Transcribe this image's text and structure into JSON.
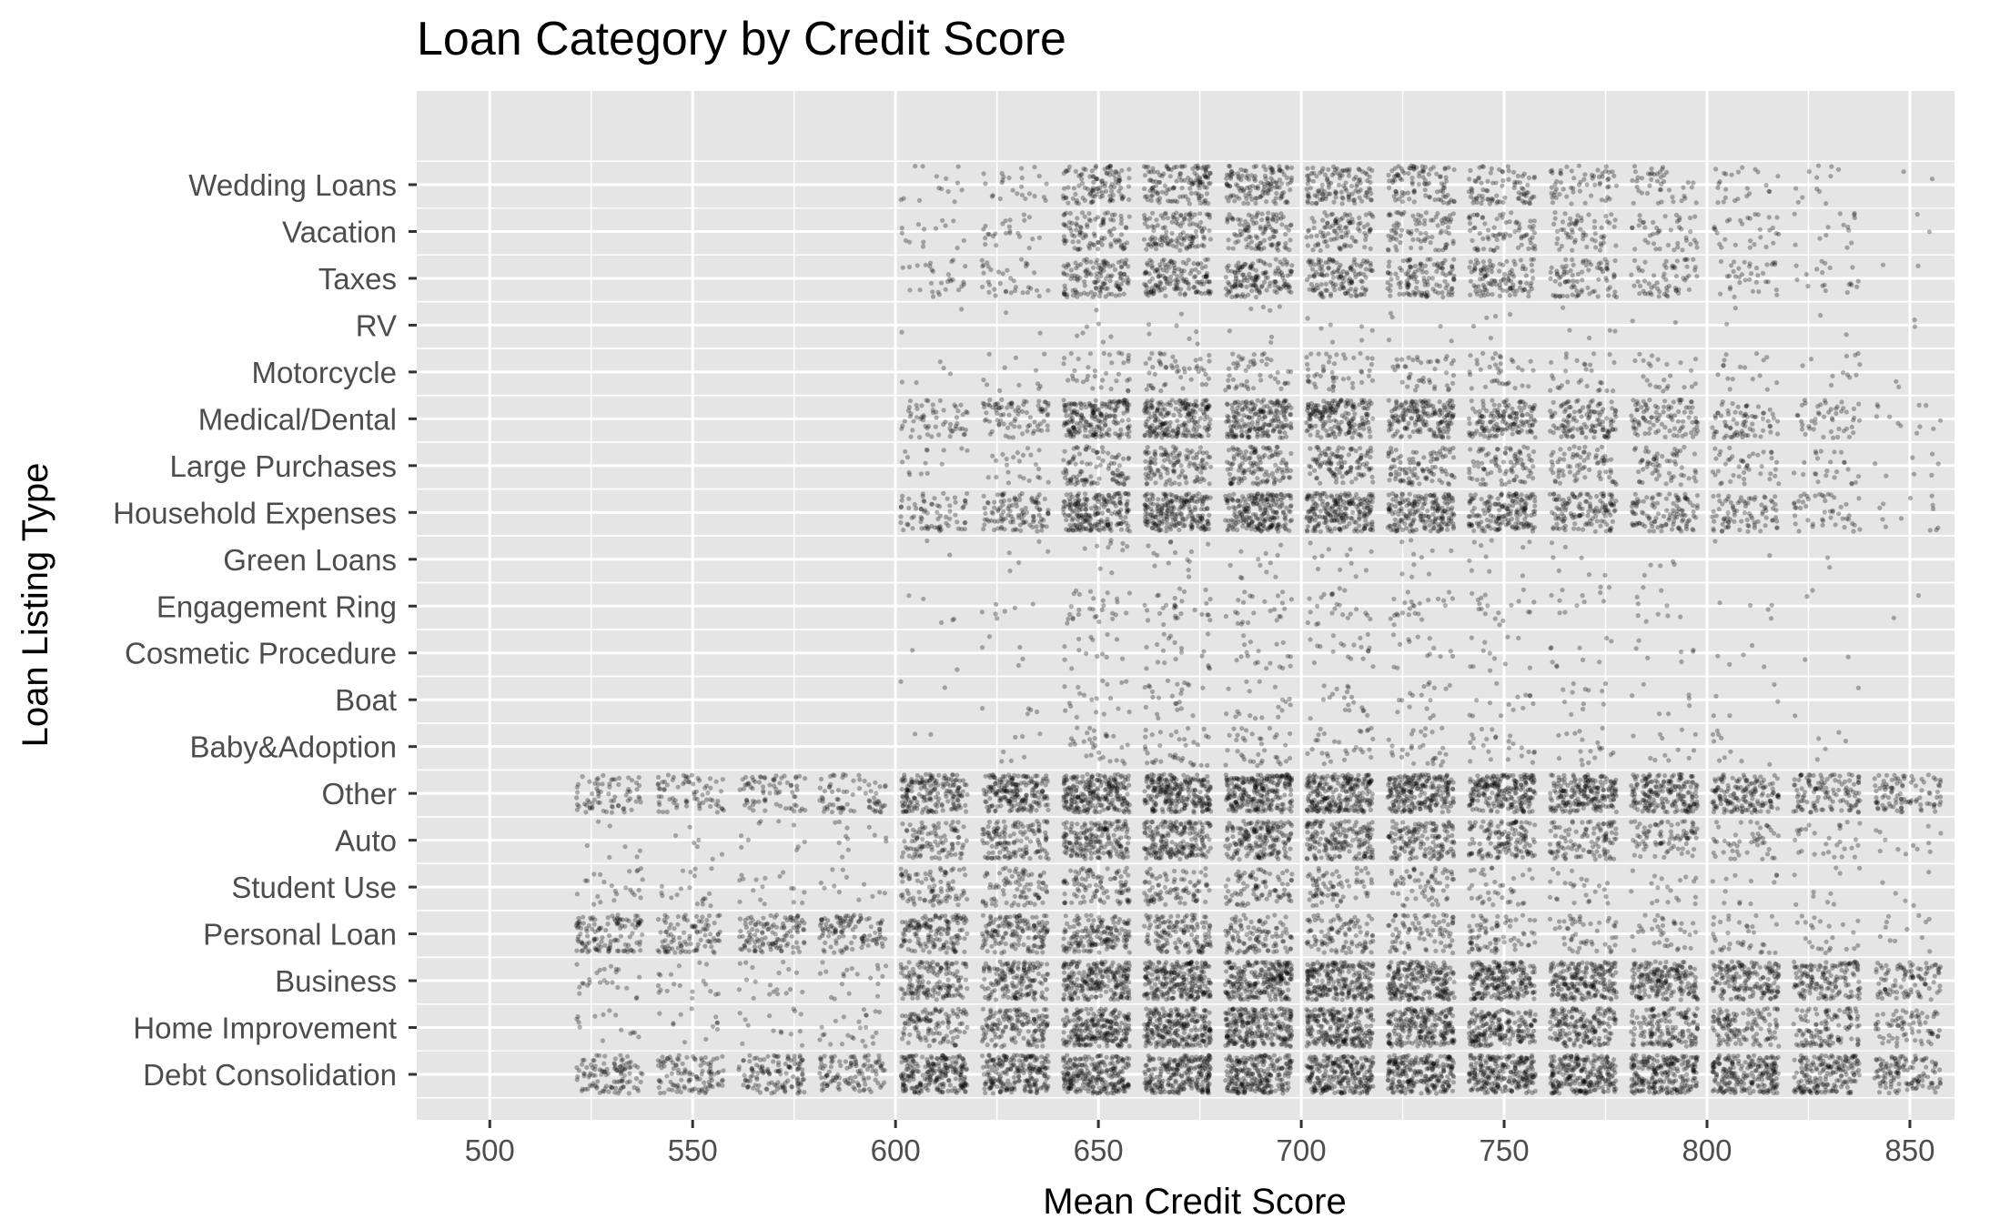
{
  "chart_data": {
    "type": "scatter",
    "title": "Loan Category by Credit Score",
    "xlabel": "Mean Credit Score",
    "ylabel": "Loan Listing Type",
    "xlim": [
      482,
      861
    ],
    "x_ticks": [
      500,
      550,
      600,
      650,
      700,
      750,
      800,
      850
    ],
    "categories": [
      "Debt Consolidation",
      "Home Improvement",
      "Business",
      "Personal Loan",
      "Student Use",
      "Auto",
      "Other",
      "Baby&Adoption",
      "Boat",
      "Cosmetic Procedure",
      "Engagement Ring",
      "Green Loans",
      "Household Expenses",
      "Large Purchases",
      "Medical/Dental",
      "Motorcycle",
      "RV",
      "Taxes",
      "Vacation",
      "Wedding Loans"
    ],
    "x_bins": [
      529.5,
      549.5,
      569.5,
      589.5,
      609.5,
      629.5,
      649.5,
      669.5,
      689.5,
      709.5,
      729.5,
      749.5,
      769.5,
      789.5,
      809.5,
      829.5,
      849.5
    ],
    "jitter_note": "",
    "point_density": [
      [
        0.45,
        0.45,
        0.5,
        0.45,
        0.95,
        0.9,
        1.0,
        1.0,
        1.0,
        1.0,
        1.0,
        1.0,
        1.0,
        0.95,
        0.9,
        0.75,
        0.5
      ],
      [
        0.06,
        0.05,
        0.06,
        0.1,
        0.45,
        0.6,
        0.95,
        1.0,
        1.0,
        0.95,
        0.9,
        0.8,
        0.7,
        0.6,
        0.5,
        0.45,
        0.3
      ],
      [
        0.1,
        0.08,
        0.08,
        0.08,
        0.6,
        0.65,
        0.95,
        1.0,
        1.0,
        0.95,
        0.9,
        0.9,
        0.85,
        0.8,
        0.7,
        0.6,
        0.4
      ],
      [
        0.5,
        0.4,
        0.5,
        0.45,
        0.6,
        0.6,
        0.65,
        0.55,
        0.45,
        0.4,
        0.35,
        0.3,
        0.2,
        0.15,
        0.15,
        0.1,
        0.05
      ],
      [
        0.1,
        0.08,
        0.07,
        0.05,
        0.35,
        0.35,
        0.4,
        0.35,
        0.35,
        0.3,
        0.25,
        0.15,
        0.1,
        0.08,
        0.05,
        0.04,
        0.02
      ],
      [
        0.03,
        0.03,
        0.04,
        0.05,
        0.4,
        0.55,
        0.75,
        0.8,
        0.75,
        0.7,
        0.6,
        0.55,
        0.45,
        0.35,
        0.2,
        0.12,
        0.05
      ],
      [
        0.3,
        0.3,
        0.3,
        0.3,
        0.75,
        0.8,
        1.0,
        1.0,
        1.0,
        1.0,
        0.95,
        0.9,
        0.85,
        0.8,
        0.65,
        0.5,
        0.4
      ],
      [
        0,
        0,
        0,
        0,
        0.01,
        0.03,
        0.12,
        0.15,
        0.15,
        0.12,
        0.12,
        0.1,
        0.08,
        0.05,
        0.04,
        0.02,
        0
      ],
      [
        0,
        0,
        0,
        0,
        0.01,
        0.02,
        0.08,
        0.1,
        0.08,
        0.08,
        0.07,
        0.06,
        0.05,
        0.03,
        0.02,
        0.01,
        0
      ],
      [
        0,
        0,
        0,
        0,
        0.01,
        0.02,
        0.06,
        0.08,
        0.08,
        0.08,
        0.06,
        0.05,
        0.04,
        0.03,
        0.02,
        0.01,
        0
      ],
      [
        0,
        0,
        0,
        0,
        0.02,
        0.03,
        0.12,
        0.12,
        0.1,
        0.1,
        0.1,
        0.08,
        0.05,
        0.04,
        0.02,
        0.01,
        0.01
      ],
      [
        0,
        0,
        0,
        0,
        0.01,
        0.02,
        0.04,
        0.06,
        0.05,
        0.05,
        0.04,
        0.04,
        0.03,
        0.02,
        0.01,
        0.01,
        0
      ],
      [
        0,
        0,
        0,
        0,
        0.3,
        0.45,
        0.85,
        0.9,
        0.9,
        0.9,
        0.8,
        0.7,
        0.55,
        0.45,
        0.35,
        0.2,
        0.05
      ],
      [
        0,
        0,
        0,
        0,
        0.06,
        0.1,
        0.4,
        0.5,
        0.5,
        0.45,
        0.4,
        0.35,
        0.3,
        0.25,
        0.18,
        0.1,
        0.03
      ],
      [
        0,
        0,
        0,
        0,
        0.25,
        0.35,
        0.8,
        0.85,
        0.8,
        0.75,
        0.7,
        0.6,
        0.5,
        0.4,
        0.3,
        0.2,
        0.05
      ],
      [
        0,
        0,
        0,
        0,
        0.02,
        0.05,
        0.15,
        0.2,
        0.2,
        0.2,
        0.18,
        0.15,
        0.12,
        0.1,
        0.07,
        0.05,
        0.01
      ],
      [
        0,
        0,
        0,
        0,
        0.01,
        0.01,
        0.03,
        0.03,
        0.03,
        0.03,
        0.02,
        0.02,
        0.02,
        0.01,
        0.01,
        0.01,
        0.01
      ],
      [
        0,
        0,
        0,
        0,
        0.12,
        0.15,
        0.55,
        0.6,
        0.6,
        0.55,
        0.5,
        0.45,
        0.35,
        0.25,
        0.15,
        0.08,
        0.01
      ],
      [
        0,
        0,
        0,
        0,
        0.06,
        0.1,
        0.4,
        0.5,
        0.45,
        0.4,
        0.35,
        0.3,
        0.25,
        0.18,
        0.12,
        0.06,
        0.01
      ],
      [
        0,
        0,
        0,
        0,
        0.06,
        0.1,
        0.45,
        0.55,
        0.55,
        0.5,
        0.4,
        0.35,
        0.25,
        0.18,
        0.1,
        0.05,
        0.01
      ]
    ],
    "point_color": "#000000",
    "point_alpha": 0.3,
    "panel_background": "#e5e5e5",
    "grid": true,
    "grid_color": "#ffffff",
    "legend": "none"
  }
}
